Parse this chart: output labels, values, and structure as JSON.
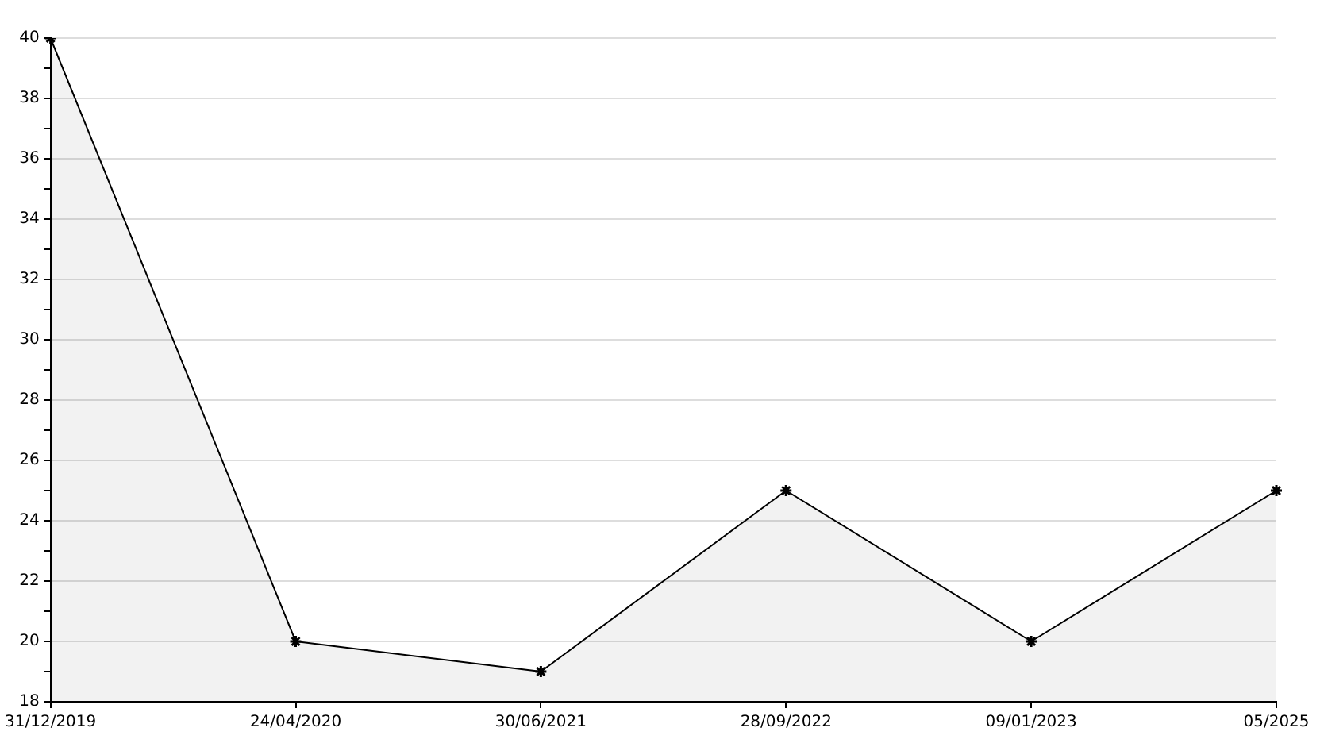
{
  "chart_data": {
    "type": "area",
    "categories": [
      "31/12/2019",
      "24/04/2020",
      "30/06/2021",
      "28/09/2022",
      "09/01/2023",
      "05/2025"
    ],
    "series": [
      {
        "color": "#000000",
        "values": [
          40,
          20,
          19,
          25,
          20,
          25
        ]
      }
    ],
    "ylim": [
      18,
      40
    ],
    "yticks": [
      18,
      {
        "value": 19,
        "label": null
      },
      20,
      {
        "value": 21,
        "label": null
      },
      22,
      {
        "value": 23,
        "label": null
      },
      24,
      {
        "value": 25,
        "label": null
      },
      26,
      {
        "value": 27,
        "label": null
      },
      28,
      {
        "value": 29,
        "label": null
      },
      30,
      {
        "value": 31,
        "label": null
      },
      32,
      {
        "value": 33,
        "label": null
      },
      34,
      {
        "value": 35,
        "label": null
      },
      36,
      {
        "value": 37,
        "label": null
      },
      38,
      {
        "value": 39,
        "label": null
      },
      40
    ],
    "grid": "y",
    "marker": "cross",
    "line_style": "solid",
    "legend": false
  }
}
